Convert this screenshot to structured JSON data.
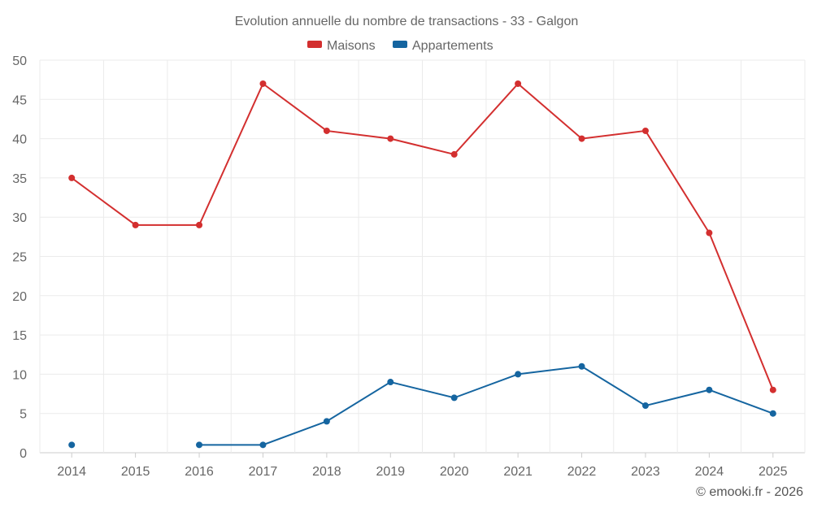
{
  "chart_data": {
    "type": "line",
    "title": "Evolution annuelle du nombre de transactions - 33 - Galgon",
    "xlabel": "",
    "ylabel": "",
    "ylim": [
      0,
      50
    ],
    "yticks": [
      0,
      5,
      10,
      15,
      20,
      25,
      30,
      35,
      40,
      45,
      50
    ],
    "categories": [
      "2014",
      "2015",
      "2016",
      "2017",
      "2018",
      "2019",
      "2020",
      "2021",
      "2022",
      "2023",
      "2024",
      "2025"
    ],
    "series": [
      {
        "name": "Maisons",
        "color": "#d32f2f",
        "values": [
          35,
          29,
          29,
          47,
          41,
          40,
          38,
          47,
          40,
          41,
          28,
          8
        ]
      },
      {
        "name": "Appartements",
        "color": "#1565a0",
        "values": [
          1,
          null,
          1,
          1,
          4,
          9,
          7,
          10,
          11,
          6,
          8,
          5
        ]
      }
    ],
    "legend_position": "top-center",
    "grid": true
  },
  "credit": "© emooki.fr - 2026"
}
